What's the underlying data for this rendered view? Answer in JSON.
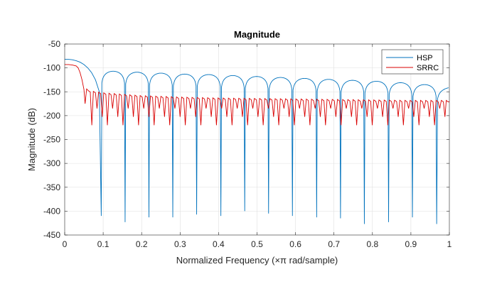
{
  "chart_data": {
    "type": "line",
    "title": "Magnitude",
    "xlabel": "Normalized Frequency  (×π rad/sample)",
    "ylabel": "Magnitude (dB)",
    "xlim": [
      0,
      1
    ],
    "ylim": [
      -450,
      -50
    ],
    "xticks": [
      0,
      0.1,
      0.2,
      0.3,
      0.4,
      0.5,
      0.6,
      0.7,
      0.8,
      0.9,
      1
    ],
    "xtick_labels": [
      "0",
      "0.1",
      "0.2",
      "0.3",
      "0.4",
      "0.5",
      "0.6",
      "0.7",
      "0.8",
      "0.9",
      "1"
    ],
    "yticks": [
      -50,
      -100,
      -150,
      -200,
      -250,
      -300,
      -350,
      -400,
      -450
    ],
    "ytick_labels": [
      "-50",
      "-100",
      "-150",
      "-200",
      "-250",
      "-300",
      "-350",
      "-400",
      "-450"
    ],
    "grid": true,
    "legend_position": "top-right",
    "series": [
      {
        "name": "HSP",
        "color": "#0072BD",
        "mainlobe": {
          "x": [
            0,
            0.01,
            0.02,
            0.03,
            0.04,
            0.05,
            0.06,
            0.07,
            0.08,
            0.09,
            0.095
          ],
          "y": [
            -82,
            -82,
            -83,
            -85,
            -88,
            -93,
            -100,
            -110,
            -125,
            -150,
            -410
          ]
        },
        "sidelobe_nulls_x": [
          0.095,
          0.157,
          0.219,
          0.281,
          0.343,
          0.406,
          0.468,
          0.53,
          0.592,
          0.655,
          0.717,
          0.779,
          0.842,
          0.904,
          0.967
        ],
        "sidelobe_null_depths": [
          -410,
          -423,
          -413,
          -413,
          -407,
          -410,
          -400,
          -405,
          -410,
          -413,
          -415,
          -427,
          -423,
          -413,
          -427
        ],
        "sidelobe_peaks": [
          -107,
          -109,
          -111,
          -113,
          -114,
          -116,
          -118,
          -120,
          -122,
          -124,
          -126,
          -128,
          -131,
          -135,
          -140,
          -136
        ]
      },
      {
        "name": "SRRC",
        "color": "#D90000",
        "passband": {
          "x": [
            0,
            0.01,
            0.02,
            0.03,
            0.035,
            0.04,
            0.045,
            0.05
          ],
          "y": [
            -93,
            -93,
            -94,
            -96,
            -100,
            -110,
            -125,
            -145
          ]
        },
        "first_null": {
          "x": 0.053,
          "y": -175
        },
        "floor": {
          "x": [
            0.06,
            0.1,
            0.2,
            0.3,
            0.4,
            0.5,
            0.6,
            0.7,
            0.8,
            0.9,
            1
          ],
          "y": [
            -152,
            -157,
            -163,
            -166,
            -168,
            -169,
            -170,
            -171,
            -172,
            -173,
            -173
          ]
        },
        "null_period": 0.0135,
        "null_depths_range": [
          -185,
          -220
        ]
      }
    ]
  }
}
